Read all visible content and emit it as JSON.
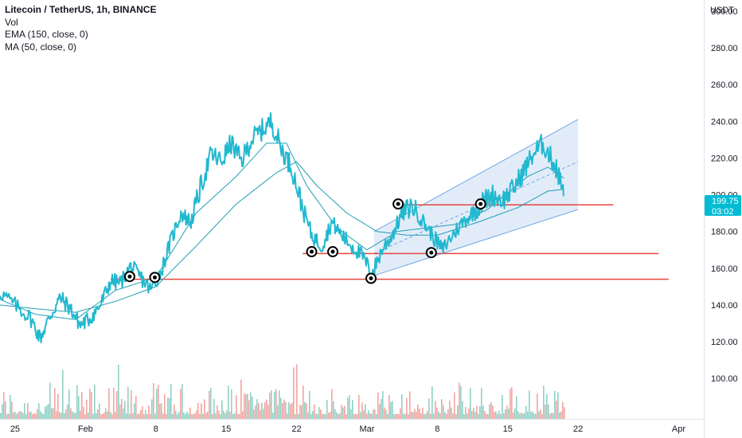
{
  "legend": {
    "title": "Litecoin / TetherUS, 1h, BINANCE",
    "vol": "Vol",
    "ema": "EMA (150, close, 0)",
    "ma": "MA (50, close, 0)"
  },
  "price_axis": {
    "currency": "USDT",
    "price_badge": "199.75",
    "countdown_badge": "03:02"
  },
  "colors": {
    "price_line": "#22b8cf",
    "ma_lines": "#1f9fb4",
    "levels": "#e8453c",
    "channel_fill": "#dbe7f8",
    "channel_stroke": "#6fa8e6",
    "volume_up": "#8fd1c6",
    "volume_down": "#f2a5a0",
    "badge": "#00bcd4"
  },
  "chart_data": {
    "type": "line",
    "title": "Litecoin / TetherUS, 1h, BINANCE",
    "y_unit": "USDT",
    "yticks": [
      "300.00",
      "280.00",
      "260.00",
      "240.00",
      "220.00",
      "200.00",
      "180.00",
      "160.00",
      "140.00",
      "120.00",
      "100.00"
    ],
    "xticks": [
      {
        "label": "25",
        "day": 25
      },
      {
        "label": "Feb",
        "day": 32
      },
      {
        "label": "8",
        "day": 39
      },
      {
        "label": "15",
        "day": 46
      },
      {
        "label": "22",
        "day": 53
      },
      {
        "label": "Mar",
        "day": 60
      },
      {
        "label": "8",
        "day": 67
      },
      {
        "label": "15",
        "day": 74
      },
      {
        "label": "22",
        "day": 81
      },
      {
        "label": "Apr",
        "day": 91
      }
    ],
    "ylim": [
      78,
      306
    ],
    "xlim": [
      23.5,
      93.5
    ],
    "price_series": [
      {
        "day": 23.5,
        "price": 147
      },
      {
        "day": 25,
        "price": 140
      },
      {
        "day": 26.5,
        "price": 133
      },
      {
        "day": 27.5,
        "price": 122
      },
      {
        "day": 28.5,
        "price": 134
      },
      {
        "day": 29.5,
        "price": 144
      },
      {
        "day": 30.5,
        "price": 138
      },
      {
        "day": 31.5,
        "price": 129
      },
      {
        "day": 32.5,
        "price": 133
      },
      {
        "day": 33.5,
        "price": 140
      },
      {
        "day": 34.5,
        "price": 153
      },
      {
        "day": 35.5,
        "price": 152
      },
      {
        "day": 36.5,
        "price": 161
      },
      {
        "day": 37.5,
        "price": 155
      },
      {
        "day": 38.5,
        "price": 148
      },
      {
        "day": 39.5,
        "price": 158
      },
      {
        "day": 40.5,
        "price": 175
      },
      {
        "day": 41.5,
        "price": 190
      },
      {
        "day": 42.5,
        "price": 185
      },
      {
        "day": 43.5,
        "price": 205
      },
      {
        "day": 44.5,
        "price": 222
      },
      {
        "day": 45.5,
        "price": 218
      },
      {
        "day": 46.5,
        "price": 228
      },
      {
        "day": 47.5,
        "price": 218
      },
      {
        "day": 48.5,
        "price": 230
      },
      {
        "day": 49.5,
        "price": 235
      },
      {
        "day": 50.5,
        "price": 240
      },
      {
        "day": 51.5,
        "price": 225
      },
      {
        "day": 52.5,
        "price": 215
      },
      {
        "day": 53.5,
        "price": 195
      },
      {
        "day": 54.5,
        "price": 178
      },
      {
        "day": 55.5,
        "price": 172
      },
      {
        "day": 56.5,
        "price": 185
      },
      {
        "day": 57.5,
        "price": 178
      },
      {
        "day": 58.5,
        "price": 172
      },
      {
        "day": 59.5,
        "price": 167
      },
      {
        "day": 60.5,
        "price": 157
      },
      {
        "day": 61.5,
        "price": 170
      },
      {
        "day": 62.5,
        "price": 178
      },
      {
        "day": 63.5,
        "price": 190
      },
      {
        "day": 64.5,
        "price": 194
      },
      {
        "day": 65.5,
        "price": 186
      },
      {
        "day": 66.5,
        "price": 178
      },
      {
        "day": 67.5,
        "price": 170
      },
      {
        "day": 68.5,
        "price": 178
      },
      {
        "day": 69.5,
        "price": 185
      },
      {
        "day": 70.5,
        "price": 190
      },
      {
        "day": 71.5,
        "price": 196
      },
      {
        "day": 72.5,
        "price": 200
      },
      {
        "day": 73.5,
        "price": 197
      },
      {
        "day": 74.5,
        "price": 203
      },
      {
        "day": 75.5,
        "price": 212
      },
      {
        "day": 76.5,
        "price": 222
      },
      {
        "day": 77.5,
        "price": 228
      },
      {
        "day": 78.5,
        "price": 218
      },
      {
        "day": 79.0,
        "price": 212
      },
      {
        "day": 79.6,
        "price": 199.75
      }
    ],
    "ema_series": [
      {
        "day": 23.5,
        "price": 140
      },
      {
        "day": 27,
        "price": 138
      },
      {
        "day": 31,
        "price": 136
      },
      {
        "day": 35,
        "price": 142
      },
      {
        "day": 39,
        "price": 150
      },
      {
        "day": 43,
        "price": 172
      },
      {
        "day": 47,
        "price": 195
      },
      {
        "day": 51,
        "price": 212
      },
      {
        "day": 53,
        "price": 218
      },
      {
        "day": 55,
        "price": 205
      },
      {
        "day": 58,
        "price": 190
      },
      {
        "day": 61,
        "price": 180
      },
      {
        "day": 64,
        "price": 178
      },
      {
        "day": 67,
        "price": 178
      },
      {
        "day": 71,
        "price": 185
      },
      {
        "day": 75,
        "price": 193
      },
      {
        "day": 78,
        "price": 202
      },
      {
        "day": 79.6,
        "price": 203
      }
    ],
    "ma_series": [
      {
        "day": 23.5,
        "price": 143
      },
      {
        "day": 27,
        "price": 135
      },
      {
        "day": 31,
        "price": 132
      },
      {
        "day": 35,
        "price": 148
      },
      {
        "day": 39,
        "price": 155
      },
      {
        "day": 43,
        "price": 190
      },
      {
        "day": 47,
        "price": 210
      },
      {
        "day": 50,
        "price": 228
      },
      {
        "day": 52,
        "price": 228
      },
      {
        "day": 54,
        "price": 205
      },
      {
        "day": 57,
        "price": 182
      },
      {
        "day": 60,
        "price": 170
      },
      {
        "day": 63,
        "price": 180
      },
      {
        "day": 66,
        "price": 182
      },
      {
        "day": 69,
        "price": 184
      },
      {
        "day": 72,
        "price": 192
      },
      {
        "day": 76,
        "price": 210
      },
      {
        "day": 78,
        "price": 215
      },
      {
        "day": 79.6,
        "price": 209
      }
    ],
    "horizontal_levels": [
      {
        "price": 194.5,
        "from_day": 63.8,
        "to_day": 84.5
      },
      {
        "price": 168,
        "from_day": 53.6,
        "to_day": 89
      },
      {
        "price": 154,
        "from_day": 34.5,
        "to_day": 90
      }
    ],
    "channel": {
      "start_day": 60.7,
      "end_day": 81,
      "upper_start": 180,
      "upper_end": 241,
      "lower_start": 156,
      "lower_end": 192,
      "mid_start": 168,
      "mid_end": 218
    },
    "marked_points": [
      {
        "day": 36.4,
        "price": 155.5
      },
      {
        "day": 38.9,
        "price": 155
      },
      {
        "day": 54.5,
        "price": 169
      },
      {
        "day": 56.6,
        "price": 169
      },
      {
        "day": 60.4,
        "price": 154.5
      },
      {
        "day": 63.1,
        "price": 195
      },
      {
        "day": 66.4,
        "price": 168.5
      },
      {
        "day": 71.3,
        "price": 195
      }
    ]
  }
}
